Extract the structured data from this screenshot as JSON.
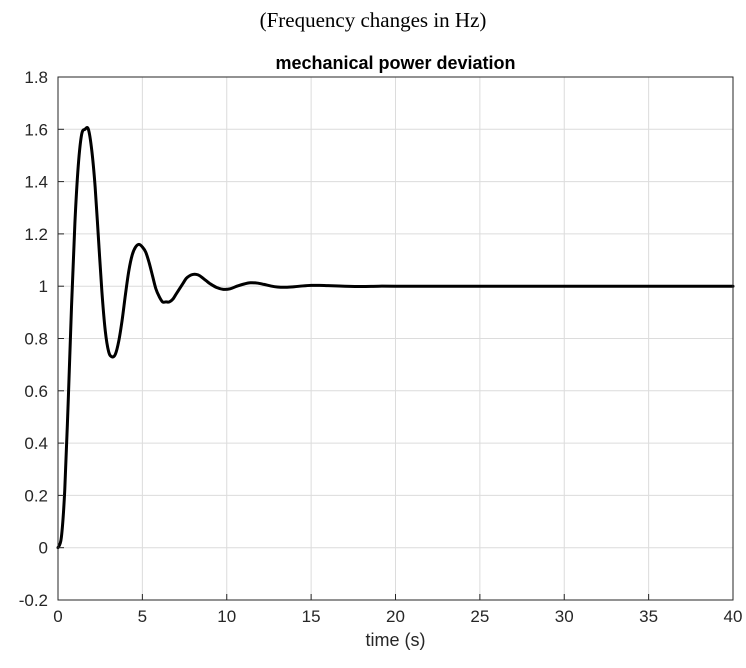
{
  "caption": "(Frequency changes in Hz)",
  "chart_data": {
    "type": "line",
    "title": "mechanical power deviation",
    "xlabel": "time (s)",
    "ylabel": "",
    "xlim": [
      0,
      40
    ],
    "ylim": [
      -0.2,
      1.8
    ],
    "xticks": [
      0,
      5,
      10,
      15,
      20,
      25,
      30,
      35,
      40
    ],
    "yticks": [
      -0.2,
      0,
      0.2,
      0.4,
      0.6,
      0.8,
      1,
      1.2,
      1.4,
      1.6,
      1.8
    ],
    "ytick_labels": [
      "-0.2",
      "0",
      "0.2",
      "0.4",
      "0.6",
      "0.8",
      "1",
      "1.2",
      "1.4",
      "1.6",
      "1.8"
    ],
    "grid": true,
    "line_color": "#000000",
    "series": [
      {
        "x": [
          0,
          0.2,
          0.4,
          0.6,
          0.8,
          1.0,
          1.2,
          1.4,
          1.6,
          1.8,
          2.0,
          2.2,
          2.4,
          2.6,
          2.8,
          3.0,
          3.2,
          3.4,
          3.6,
          3.8,
          4.0,
          4.2,
          4.4,
          4.6,
          4.8,
          5.0,
          5.2,
          5.4,
          5.6,
          5.8,
          6.0,
          6.2,
          6.4,
          6.6,
          6.8,
          7.0,
          7.2,
          7.4,
          7.6,
          7.8,
          8.0,
          8.2,
          8.4,
          8.6,
          8.8,
          9.0,
          9.4,
          9.8,
          10.2,
          10.6,
          11.0,
          11.4,
          11.8,
          12.2,
          12.6,
          13.0,
          13.5,
          14.0,
          14.5,
          15.0,
          15.5,
          16.0,
          17.0,
          18.0,
          19.0,
          20.0,
          25.0,
          30.0,
          35.0,
          40.0
        ],
        "values": [
          0,
          0.04,
          0.22,
          0.55,
          0.92,
          1.24,
          1.46,
          1.58,
          1.6,
          1.6,
          1.52,
          1.38,
          1.18,
          0.98,
          0.83,
          0.75,
          0.73,
          0.74,
          0.79,
          0.87,
          0.97,
          1.06,
          1.12,
          1.15,
          1.16,
          1.15,
          1.13,
          1.09,
          1.04,
          0.99,
          0.96,
          0.94,
          0.94,
          0.94,
          0.95,
          0.97,
          0.99,
          1.01,
          1.03,
          1.04,
          1.045,
          1.045,
          1.04,
          1.03,
          1.02,
          1.01,
          0.995,
          0.988,
          0.99,
          1.0,
          1.008,
          1.013,
          1.012,
          1.007,
          1.001,
          0.997,
          0.996,
          0.998,
          1.001,
          1.003,
          1.003,
          1.002,
          1.0,
          0.999,
          1.0,
          1.0,
          1.0,
          1.0,
          1.0,
          1.0
        ]
      }
    ]
  }
}
